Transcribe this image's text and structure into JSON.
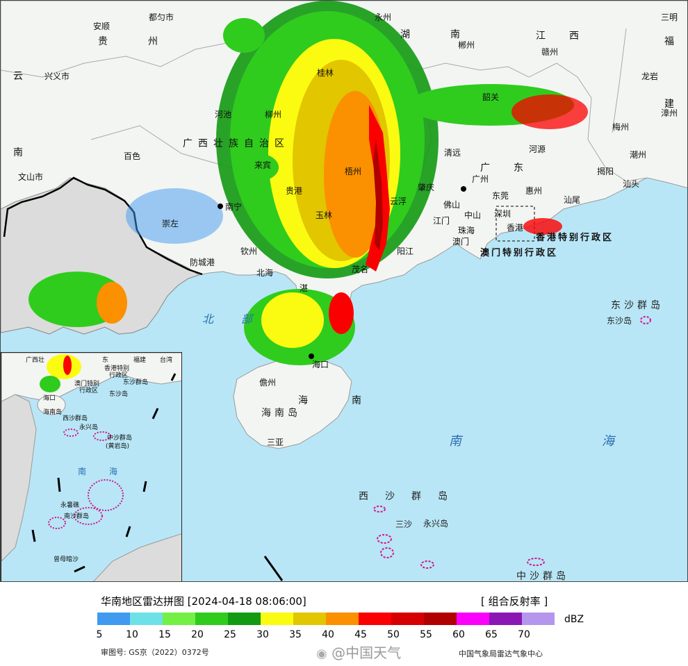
{
  "footer": {
    "title": "华南地区雷达拼图 [2024-04-18 08:06:00]",
    "product": "[ 组合反射率 ]",
    "unit": "dBZ",
    "approval": "审图号: GS京（2022）0372号",
    "watermark": "@中国天气",
    "credit": "中国气象局雷达气象中心",
    "scale": {
      "colors": [
        "#3f9af0",
        "#6ee0e8",
        "#74ef45",
        "#2fcc1e",
        "#129a12",
        "#fbfb12",
        "#e2c600",
        "#fb9000",
        "#fb0000",
        "#d60000",
        "#b00000",
        "#fb00fb",
        "#8a17b4",
        "#b496ec"
      ],
      "ticks": [
        "5",
        "10",
        "15",
        "20",
        "25",
        "30",
        "35",
        "40",
        "45",
        "50",
        "55",
        "60",
        "65",
        "70"
      ]
    }
  },
  "map": {
    "labels": {
      "guizhou": "贵　　州",
      "hunan": "湖　　南",
      "jiangxi": "江　西",
      "fujian": "福",
      "jian": "建",
      "yun": "云",
      "nan_yn": "南",
      "guangxi": "广西壮族自治区",
      "guangdong": "广　东",
      "hk_sar": "香港特别行政区",
      "mo_sar": "澳门特别行政区",
      "beibu": "北　部",
      "hainan_island": "海南岛",
      "hai": "海",
      "nan_hai": "南",
      "nanhai_sea_1": "南",
      "nanhai_sea_2": "海",
      "dongsha_group": "东沙群岛",
      "dongsha": "东沙岛",
      "xisha_group": "西　沙　群　岛",
      "sansha": "三沙",
      "yongxing": "永兴岛",
      "zhongsha_group": "中沙群岛"
    },
    "cities": {
      "duyun": "都匀市",
      "anshun": "安顺",
      "xingyi": "兴义市",
      "wenshan": "文山市",
      "yongzhou": "永州",
      "chenzhou": "郴州",
      "ganzhou": "赣州",
      "sanming": "三明",
      "longyan": "龙岩",
      "zhangzhou": "漳州",
      "hechi": "河池",
      "liuzhou": "柳州",
      "guilin": "桂林",
      "baise": "百色",
      "laibin": "来宾",
      "wuzhou": "梧州",
      "guigang": "贵港",
      "nanning": "南宁",
      "yulin": "玉林",
      "chongzuo": "崇左",
      "qinzhou": "钦州",
      "fangchenggang": "防城港",
      "beihai": "北海",
      "zhanjiang": "湛",
      "maoming": "茂名",
      "yangjiang": "阳江",
      "zhaoqing": "肇庆",
      "qingyuan": "清远",
      "shaoguan": "韶关",
      "heyuan": "河源",
      "meizhou": "梅州",
      "chaozhou": "潮州",
      "jieyang": "揭阳",
      "shantou": "汕头",
      "shanwei": "汕尾",
      "huizhou": "惠州",
      "dongguan": "东莞",
      "guangzhou": "广州",
      "foshan": "佛山",
      "zhongshan": "中山",
      "jiangmen": "江门",
      "zhuhai": "珠海",
      "aomen": "澳门",
      "shenzhen": "深圳",
      "xianggang": "香港",
      "yunfu": "云浮",
      "haikou": "海口",
      "danzhou": "儋州",
      "sanya": "三亚"
    },
    "inset": {
      "gx": "广西壮",
      "dong": "东",
      "gd": "福建",
      "taiwan": "台湾",
      "hk": "香港特别",
      "hk2": "行政区",
      "mo": "澳门特别",
      "mo2": "行政区",
      "dongsha_g": "东沙群岛",
      "dongsha_i": "东沙岛",
      "haikou": "海口",
      "hainan": "海南岛",
      "xisha": "西沙群岛",
      "yongxing": "永兴岛",
      "zhongsha": "中沙群岛",
      "huangyan": "(黄岩岛)",
      "nan": "南",
      "hai": "海",
      "nansha": "南沙群岛",
      "zengmu": "曾母暗沙",
      "yongshu": "永暑礁"
    }
  }
}
